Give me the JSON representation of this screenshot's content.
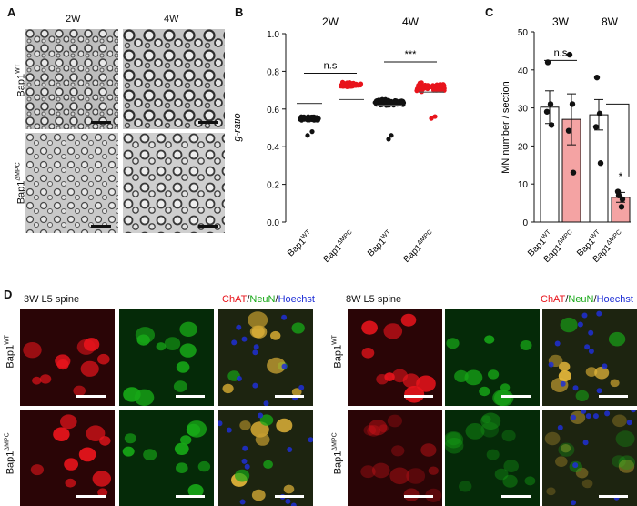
{
  "panelA": {
    "letter": "A",
    "col_labels": [
      "2W",
      "4W"
    ],
    "row_labels": [
      {
        "base": "Bap1",
        "sup": "WT"
      },
      {
        "base": "Bap1",
        "sup": "ΔMPC"
      }
    ]
  },
  "panelB": {
    "letter": "B",
    "chart_data": {
      "type": "scatter",
      "title": "",
      "xlabel": "",
      "ylabel": "g-ratio",
      "ylim": [
        0.0,
        1.0
      ],
      "yticks": [
        "0.0",
        "0.2",
        "0.4",
        "0.6",
        "0.8",
        "1.0"
      ],
      "group_labels": [
        "2W",
        "4W"
      ],
      "categories": [
        {
          "base": "Bap1",
          "sup": "WT"
        },
        {
          "base": "Bap1",
          "sup": "ΔMPC"
        },
        {
          "base": "Bap1",
          "sup": "WT"
        },
        {
          "base": "Bap1",
          "sup": "ΔMPC"
        }
      ],
      "series": [
        {
          "values": [
            0.55,
            0.72,
            0.62,
            0.69
          ]
        },
        {
          "values": [
            0.55,
            0.74,
            0.65,
            0.74
          ]
        }
      ],
      "point_colors": [
        "#111111",
        "#e8141c",
        "#111111",
        "#e8141c"
      ],
      "approx_means": [
        0.63,
        0.65,
        0.62,
        0.69
      ],
      "significance": [
        {
          "groups": [
            0,
            1
          ],
          "label": "n.s"
        },
        {
          "groups": [
            2,
            3
          ],
          "label": "***"
        }
      ]
    }
  },
  "panelC": {
    "letter": "C",
    "chart_data": {
      "type": "bar",
      "title": "",
      "xlabel": "",
      "ylabel": "MN number / section",
      "ylim": [
        0,
        50
      ],
      "yticks": [
        "0",
        "10",
        "20",
        "30",
        "40",
        "50"
      ],
      "group_labels": [
        "3W",
        "8W"
      ],
      "categories": [
        {
          "base": "Bap1",
          "sup": "WT"
        },
        {
          "base": "Bap1",
          "sup": "ΔMPC"
        },
        {
          "base": "Bap1",
          "sup": "WT"
        },
        {
          "base": "Bap1",
          "sup": "ΔMPC"
        }
      ],
      "values": [
        30.2,
        27.0,
        28.2,
        6.5
      ],
      "errors": [
        4.3,
        6.7,
        4.0,
        1.3
      ],
      "points": [
        [
          42,
          31,
          29,
          25.5
        ],
        [
          44,
          31,
          24,
          13
        ],
        [
          38,
          28.5,
          25,
          15.5
        ],
        [
          7,
          4,
          8,
          6
        ]
      ],
      "bar_colors": [
        "#ffffff",
        "#f4a3a3",
        "#ffffff",
        "#f4a3a3"
      ],
      "significance": [
        {
          "groups": [
            0,
            1
          ],
          "label": "n.s"
        },
        {
          "groups": [
            2,
            3
          ],
          "label": "*"
        }
      ]
    }
  },
  "panelD": {
    "letter": "D",
    "left_title": "3W L5 spine",
    "right_title": "8W L5 spine",
    "stain_chat": "ChAT",
    "stain_neun": "NeuN",
    "stain_hoechst": "Hoechst",
    "slash": "/",
    "row_labels": [
      {
        "base": "Bap1",
        "sup": "WT"
      },
      {
        "base": "Bap1",
        "sup": "ΔMPC"
      }
    ],
    "colors": {
      "red": "#e8141c",
      "green": "#17a817",
      "blue": "#1f2fd6"
    }
  }
}
